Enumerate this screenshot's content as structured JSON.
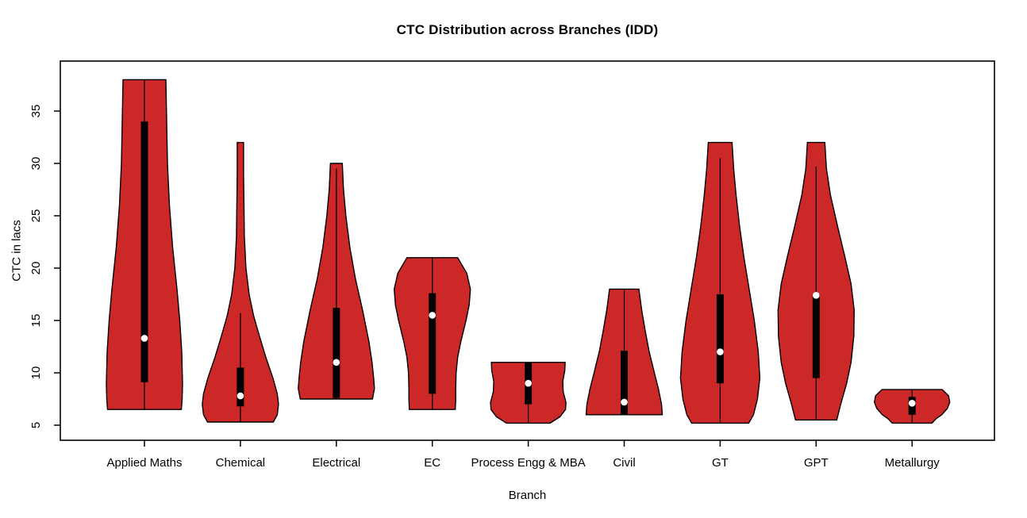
{
  "chart_data": {
    "type": "violin",
    "title": "CTC Distribution across Branches (IDD)",
    "xlabel": "Branch",
    "ylabel": "CTC in lacs",
    "ylim": [
      3.5,
      39.8
    ],
    "y_ticks": [
      5,
      10,
      15,
      20,
      25,
      30,
      35
    ],
    "grid": false,
    "legend": "none",
    "colors": {
      "violin_fill": "#CC2828",
      "outline": "#000000",
      "box": "#000000",
      "median_dot": "#FFFFFF",
      "axis": "#000000",
      "background": "#FFFFFF"
    },
    "categories": [
      "Applied Maths",
      "Chemical",
      "Electrical",
      "EC",
      "Process Engg & MBA",
      "Civil",
      "GT",
      "GPT",
      "Metallurgy"
    ],
    "series": [
      {
        "branch": "Applied Maths",
        "min": 6.5,
        "max": 38.0,
        "q1": 9.1,
        "q3": 34.0,
        "median": 13.3,
        "whisker_low": 6.5,
        "whisker_high": 38.0,
        "profile": [
          [
            38,
            0.54
          ],
          [
            34,
            0.56
          ],
          [
            30,
            0.58
          ],
          [
            26,
            0.63
          ],
          [
            22,
            0.71
          ],
          [
            18,
            0.82
          ],
          [
            15,
            0.89
          ],
          [
            12,
            0.94
          ],
          [
            9,
            0.96
          ],
          [
            7.5,
            0.95
          ],
          [
            6.5,
            0.93
          ]
        ]
      },
      {
        "branch": "Chemical",
        "min": 5.3,
        "max": 32.0,
        "q1": 6.8,
        "q3": 10.5,
        "median": 7.8,
        "whisker_low": 5.3,
        "whisker_high": 15.7,
        "profile": [
          [
            32,
            0.08
          ],
          [
            29,
            0.08
          ],
          [
            26,
            0.09
          ],
          [
            23,
            0.1
          ],
          [
            20,
            0.14
          ],
          [
            17.5,
            0.22
          ],
          [
            15.5,
            0.33
          ],
          [
            13.5,
            0.48
          ],
          [
            11.5,
            0.64
          ],
          [
            9.5,
            0.82
          ],
          [
            8,
            0.93
          ],
          [
            7,
            0.96
          ],
          [
            6,
            0.93
          ],
          [
            5.3,
            0.83
          ]
        ]
      },
      {
        "branch": "Electrical",
        "min": 7.5,
        "max": 30.0,
        "q1": 7.6,
        "q3": 16.2,
        "median": 11.0,
        "whisker_low": 7.5,
        "whisker_high": 29.5,
        "profile": [
          [
            30,
            0.15
          ],
          [
            27.5,
            0.18
          ],
          [
            25,
            0.24
          ],
          [
            22,
            0.34
          ],
          [
            19,
            0.48
          ],
          [
            16,
            0.66
          ],
          [
            13,
            0.82
          ],
          [
            11,
            0.9
          ],
          [
            9.5,
            0.94
          ],
          [
            8.5,
            0.96
          ],
          [
            7.5,
            0.91
          ]
        ]
      },
      {
        "branch": "EC",
        "min": 6.5,
        "max": 21.0,
        "q1": 8.0,
        "q3": 17.6,
        "median": 15.5,
        "whisker_low": 6.5,
        "whisker_high": 21.0,
        "profile": [
          [
            21,
            0.64
          ],
          [
            19.5,
            0.87
          ],
          [
            18,
            0.96
          ],
          [
            16.5,
            0.93
          ],
          [
            15,
            0.85
          ],
          [
            13,
            0.72
          ],
          [
            11.5,
            0.64
          ],
          [
            10,
            0.6
          ],
          [
            8.5,
            0.59
          ],
          [
            7.5,
            0.59
          ],
          [
            6.5,
            0.58
          ]
        ]
      },
      {
        "branch": "Process Engg & MBA",
        "min": 5.2,
        "max": 11.0,
        "q1": 7.0,
        "q3": 11.0,
        "median": 9.0,
        "whisker_low": 5.2,
        "whisker_high": 11.0,
        "profile": [
          [
            11,
            0.93
          ],
          [
            10.2,
            0.92
          ],
          [
            9.2,
            0.87
          ],
          [
            8.2,
            0.88
          ],
          [
            7.2,
            0.95
          ],
          [
            6.5,
            0.94
          ],
          [
            5.8,
            0.8
          ],
          [
            5.2,
            0.55
          ]
        ]
      },
      {
        "branch": "Civil",
        "min": 6.0,
        "max": 18.0,
        "q1": 6.0,
        "q3": 12.1,
        "median": 7.2,
        "whisker_low": 6.0,
        "whisker_high": 18.0,
        "profile": [
          [
            18,
            0.37
          ],
          [
            16,
            0.44
          ],
          [
            14,
            0.53
          ],
          [
            12,
            0.63
          ],
          [
            10,
            0.76
          ],
          [
            8.5,
            0.86
          ],
          [
            7,
            0.94
          ],
          [
            6,
            0.96
          ]
        ]
      },
      {
        "branch": "GT",
        "min": 5.2,
        "max": 32.0,
        "q1": 9.0,
        "q3": 17.5,
        "median": 12.0,
        "whisker_low": 5.2,
        "whisker_high": 30.5,
        "profile": [
          [
            32,
            0.3
          ],
          [
            29.5,
            0.34
          ],
          [
            27,
            0.4
          ],
          [
            24,
            0.49
          ],
          [
            21,
            0.6
          ],
          [
            18,
            0.73
          ],
          [
            15,
            0.86
          ],
          [
            12,
            0.96
          ],
          [
            9.5,
            1.0
          ],
          [
            7.5,
            0.94
          ],
          [
            6,
            0.84
          ],
          [
            5.2,
            0.72
          ]
        ]
      },
      {
        "branch": "GPT",
        "min": 5.5,
        "max": 32.0,
        "q1": 9.5,
        "q3": 17.5,
        "median": 17.4,
        "whisker_low": 5.5,
        "whisker_high": 29.7,
        "profile": [
          [
            32,
            0.22
          ],
          [
            29.5,
            0.26
          ],
          [
            27,
            0.36
          ],
          [
            24,
            0.54
          ],
          [
            21,
            0.73
          ],
          [
            18.5,
            0.88
          ],
          [
            16,
            0.96
          ],
          [
            13.5,
            0.95
          ],
          [
            11,
            0.88
          ],
          [
            9,
            0.77
          ],
          [
            7,
            0.62
          ],
          [
            5.5,
            0.52
          ]
        ]
      },
      {
        "branch": "Metallurgy",
        "min": 5.2,
        "max": 8.4,
        "q1": 6.0,
        "q3": 7.7,
        "median": 7.1,
        "whisker_low": 5.2,
        "whisker_high": 8.4,
        "profile": [
          [
            8.4,
            0.76
          ],
          [
            7.8,
            0.92
          ],
          [
            7.2,
            0.95
          ],
          [
            6.6,
            0.89
          ],
          [
            6,
            0.75
          ],
          [
            5.6,
            0.6
          ],
          [
            5.2,
            0.5
          ]
        ]
      }
    ]
  }
}
